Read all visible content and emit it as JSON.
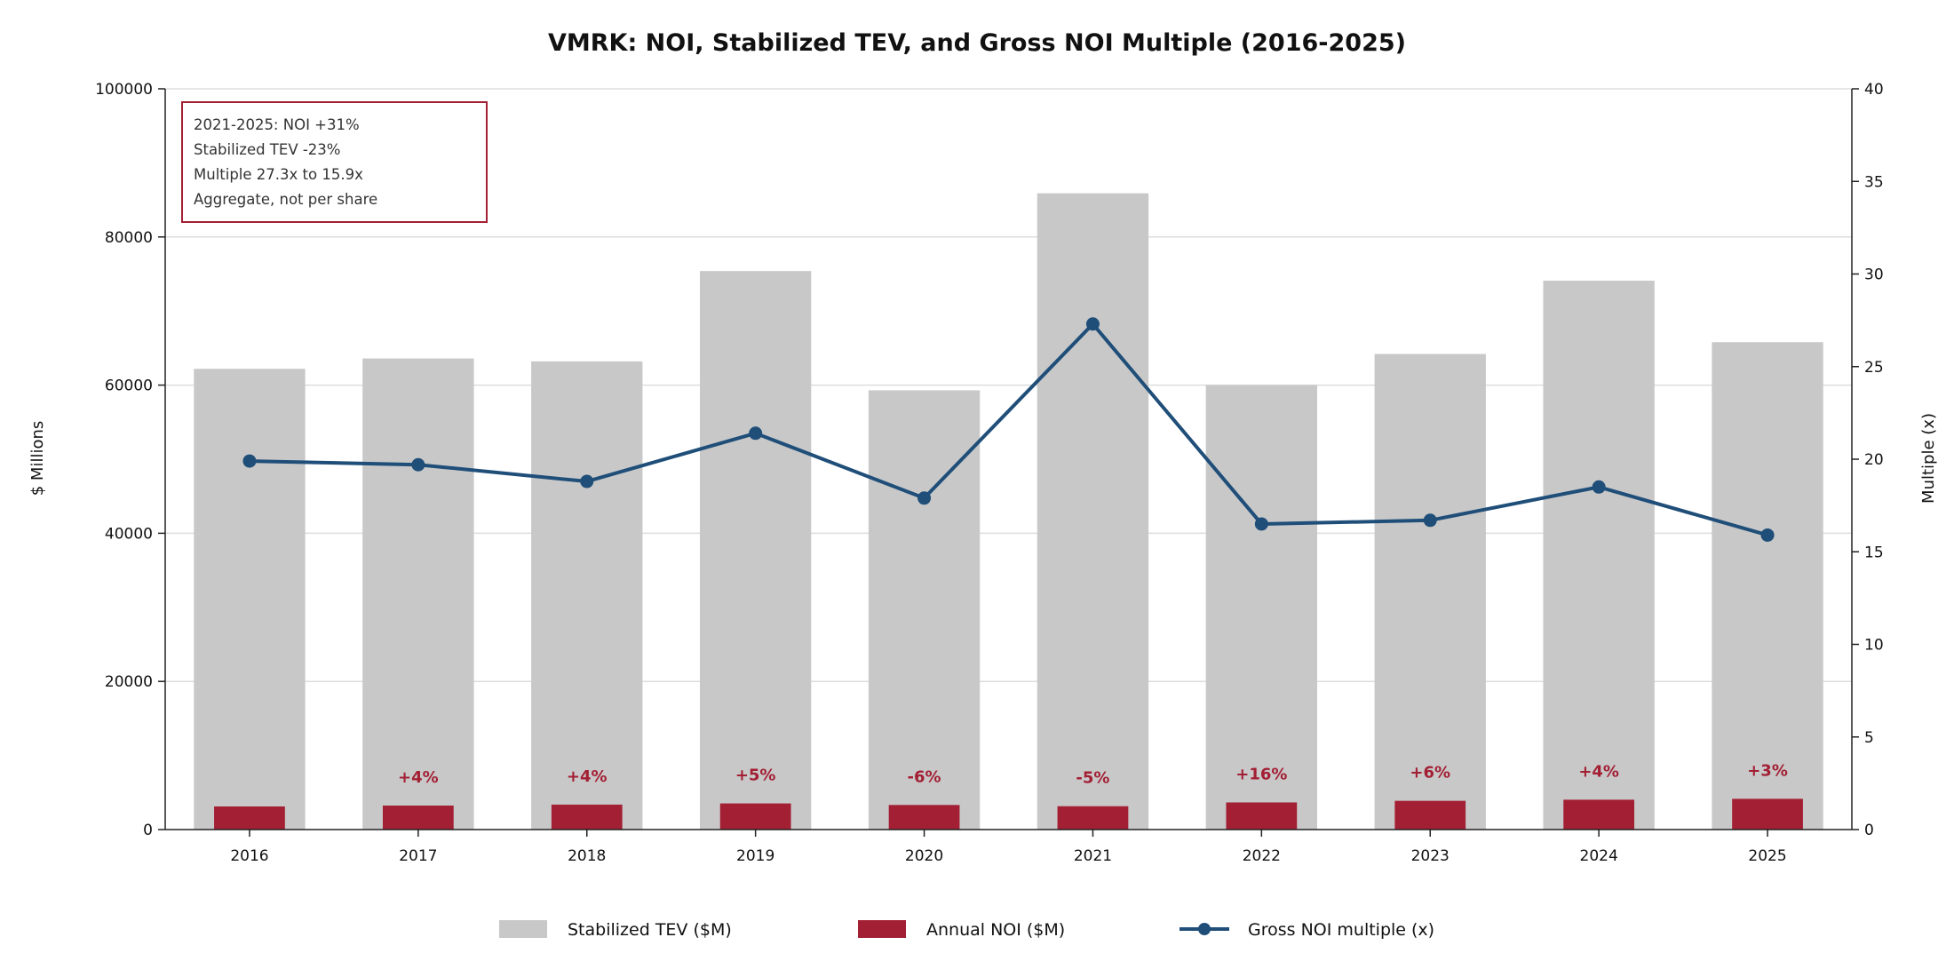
{
  "chart_data": {
    "type": "bar",
    "title": "VMRK: NOI, Stabilized TEV, and Gross NOI Multiple (2016-2025)",
    "categories": [
      "2016",
      "2017",
      "2018",
      "2019",
      "2020",
      "2021",
      "2022",
      "2023",
      "2024",
      "2025"
    ],
    "ylabel": "$ Millions",
    "y2label": "Multiple (x)",
    "ylim": [
      0,
      100000
    ],
    "y2lim": [
      0,
      40
    ],
    "yticks": [
      "0",
      "20000",
      "40000",
      "60000",
      "80000",
      "100000"
    ],
    "y2ticks": [
      "0",
      "5",
      "10",
      "15",
      "20",
      "25",
      "30",
      "35",
      "40"
    ],
    "grid": true,
    "series": [
      {
        "name": "Stabilized TEV ($M)",
        "type": "bar",
        "color": "#C8C8C8",
        "values": [
          62200,
          63600,
          63200,
          75400,
          59300,
          85900,
          60000,
          64200,
          74100,
          65800
        ]
      },
      {
        "name": "Annual NOI ($M)",
        "type": "bar",
        "color": "#A31F34",
        "values": [
          3120,
          3240,
          3370,
          3530,
          3320,
          3150,
          3660,
          3880,
          4030,
          4150
        ]
      },
      {
        "name": "Gross NOI multiple (x)",
        "type": "line",
        "axis": "right",
        "color": "#1F4E79",
        "values": [
          19.9,
          19.7,
          18.8,
          21.4,
          17.9,
          27.3,
          16.5,
          16.7,
          18.5,
          15.9
        ]
      }
    ],
    "noi_change_labels": [
      "",
      "+4%",
      "+4%",
      "+5%",
      "-6%",
      "-5%",
      "+16%",
      "+6%",
      "+4%",
      "+3%"
    ],
    "annotation": {
      "lines": [
        "2021-2025: NOI +31%",
        "Stabilized TEV -23%",
        "Multiple 27.3x to 15.9x",
        "Aggregate, not per share"
      ],
      "border_color": "#A31F34"
    },
    "legend_position": "bottom-center"
  }
}
